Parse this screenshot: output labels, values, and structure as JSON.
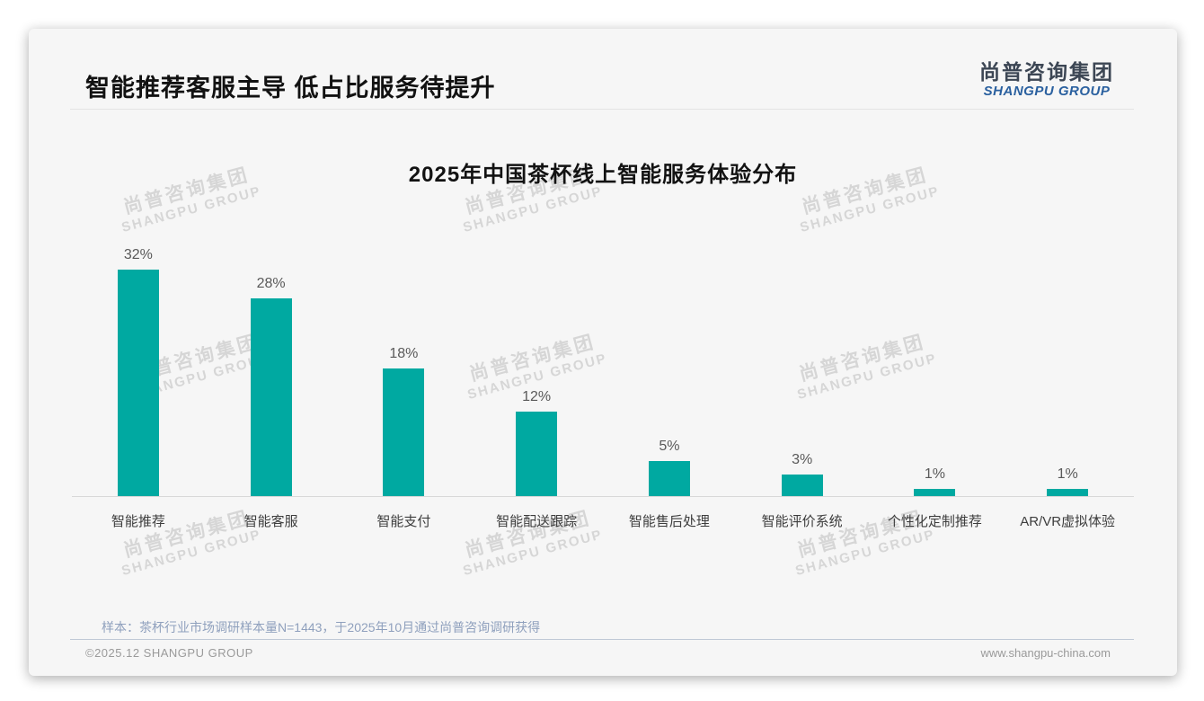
{
  "page": {
    "title": "智能推荐客服主导 低占比服务待提升",
    "logo": {
      "cn": "尚普咨询集团",
      "en": "SHANGPU GROUP"
    },
    "watermark": {
      "cn": "尚普咨询集团",
      "en": "SHANGPU GROUP"
    },
    "sample_note": "样本：茶杯行业市场调研样本量N=1443，于2025年10月通过尚普咨询调研获得",
    "footer": {
      "left": "©2025.12 SHANGPU GROUP",
      "right": "www.shangpu-china.com"
    }
  },
  "chart_data": {
    "type": "bar",
    "title": "2025年中国茶杯线上智能服务体验分布",
    "categories": [
      "智能推荐",
      "智能客服",
      "智能支付",
      "智能配送跟踪",
      "智能售后处理",
      "智能评价系统",
      "个性化定制推荐",
      "AR/VR虚拟体验"
    ],
    "values": [
      32,
      28,
      18,
      12,
      5,
      3,
      1,
      1
    ],
    "unit": "%",
    "value_labels": [
      "32%",
      "28%",
      "18%",
      "12%",
      "5%",
      "3%",
      "1%",
      "1%"
    ],
    "bar_color": "#00A9A1",
    "xlabel": "",
    "ylabel": "",
    "ylim": [
      0,
      35
    ],
    "grid": false,
    "legend": null,
    "value_label_position": "above-bar"
  }
}
